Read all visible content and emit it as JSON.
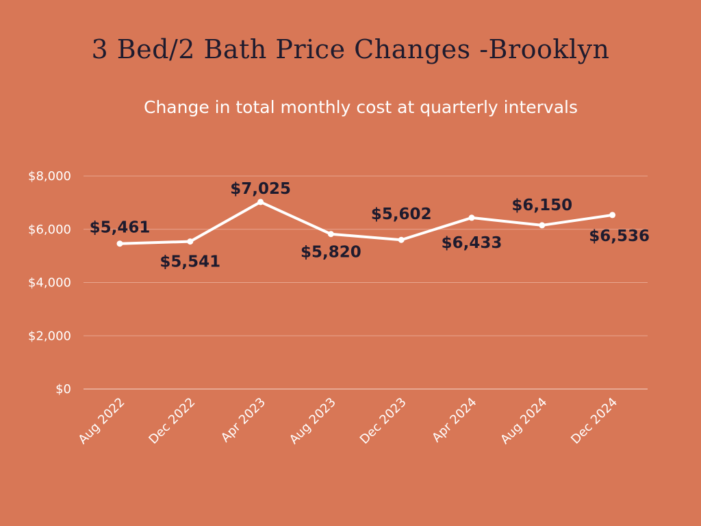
{
  "chart_data": {
    "type": "line",
    "title": "3 Bed/2 Bath Price Changes -Brooklyn",
    "subtitle": "Change in total monthly cost at quarterly intervals",
    "categories": [
      "Aug 2022",
      "Dec 2022",
      "Apr 2023",
      "Aug 2023",
      "Dec 2023",
      "Apr 2024",
      "Aug 2024",
      "Dec 2024"
    ],
    "series": [
      {
        "values": [
          5461,
          5541,
          7025,
          5820,
          5602,
          6433,
          6150,
          6536
        ],
        "data_labels": [
          "$5,461",
          "$5,541",
          "$7,025",
          "$5,820",
          "$5,602",
          "$6,433",
          "$6,150",
          "$6,536"
        ],
        "color": "#ffffff"
      }
    ],
    "yticks": [
      0,
      2000,
      4000,
      6000,
      8000
    ],
    "ytick_labels": [
      "$0",
      "$2,000",
      "$4,000",
      "$6,000",
      "$8,000"
    ],
    "ylim": [
      0,
      8000
    ],
    "grid": true,
    "legend": "none",
    "background": "#d87756",
    "label_color": "#1e1b2e"
  }
}
